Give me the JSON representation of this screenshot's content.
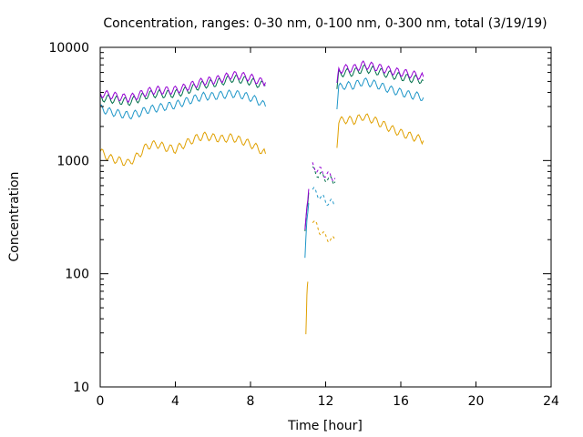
{
  "chart_data": {
    "type": "line",
    "title": "Concentration, ranges: 0-30 nm, 0-100 nm, 0-300 nm, total (3/19/19)",
    "xlabel": "Time [hour]",
    "ylabel": "Concentration",
    "xlim": [
      0,
      24
    ],
    "ylim": [
      10,
      10000
    ],
    "yscale": "log",
    "grid": false,
    "legend": "none",
    "xticks": [
      "0",
      "4",
      "8",
      "12",
      "16",
      "20",
      "24"
    ],
    "yticks": [
      "10",
      "100",
      "1000",
      "10000"
    ],
    "series": [
      {
        "color": "#e0a000",
        "segments": [
          [
            [
              0,
              1200
            ],
            [
              0.5,
              1050
            ],
            [
              1,
              1000
            ],
            [
              1.5,
              950
            ],
            [
              2,
              1100
            ],
            [
              2.5,
              1350
            ],
            [
              3,
              1400
            ],
            [
              3.5,
              1300
            ],
            [
              4,
              1250
            ],
            [
              4.5,
              1400
            ],
            [
              5,
              1550
            ],
            [
              5.5,
              1650
            ],
            [
              6,
              1600
            ],
            [
              6.5,
              1550
            ],
            [
              7,
              1600
            ],
            [
              7.5,
              1500
            ],
            [
              8,
              1400
            ],
            [
              8.5,
              1250
            ],
            [
              8.8,
              1150
            ]
          ],
          [
            [
              10.95,
              28
            ],
            [
              11,
              60
            ],
            [
              11.05,
              85
            ]
          ],
          [
            [
              11.3,
              300
            ],
            [
              11.6,
              250
            ],
            [
              12,
              210
            ],
            [
              12.5,
              195
            ]
          ],
          [
            [
              12.6,
              1400
            ],
            [
              12.7,
              2200
            ],
            [
              13,
              2300
            ],
            [
              13.5,
              2250
            ],
            [
              14,
              2450
            ],
            [
              14.5,
              2300
            ],
            [
              15,
              2100
            ],
            [
              15.5,
              1900
            ],
            [
              16,
              1750
            ],
            [
              16.5,
              1650
            ],
            [
              17,
              1550
            ],
            [
              17.2,
              1500
            ]
          ]
        ]
      },
      {
        "color": "#1e96c8",
        "segments": [
          [
            [
              0,
              2900
            ],
            [
              0.5,
              2700
            ],
            [
              1,
              2600
            ],
            [
              1.5,
              2500
            ],
            [
              2,
              2600
            ],
            [
              2.5,
              2800
            ],
            [
              3,
              2900
            ],
            [
              3.5,
              3000
            ],
            [
              4,
              3100
            ],
            [
              4.5,
              3300
            ],
            [
              5,
              3500
            ],
            [
              5.5,
              3700
            ],
            [
              6,
              3700
            ],
            [
              6.5,
              3800
            ],
            [
              7,
              3900
            ],
            [
              7.5,
              3800
            ],
            [
              8,
              3600
            ],
            [
              8.5,
              3300
            ],
            [
              8.8,
              3000
            ]
          ],
          [
            [
              10.9,
              130
            ],
            [
              11,
              280
            ],
            [
              11.1,
              420
            ]
          ],
          [
            [
              11.3,
              550
            ],
            [
              11.6,
              500
            ],
            [
              12,
              440
            ],
            [
              12.5,
              410
            ]
          ],
          [
            [
              12.6,
              3000
            ],
            [
              12.7,
              4400
            ],
            [
              13,
              4600
            ],
            [
              13.5,
              4600
            ],
            [
              14,
              5000
            ],
            [
              14.5,
              4800
            ],
            [
              15,
              4500
            ],
            [
              15.5,
              4200
            ],
            [
              16,
              4000
            ],
            [
              16.5,
              3800
            ],
            [
              17,
              3700
            ],
            [
              17.2,
              3600
            ]
          ]
        ]
      },
      {
        "color": "#00704a",
        "segments": [
          [
            [
              0,
              3600
            ],
            [
              0.5,
              3500
            ],
            [
              1,
              3400
            ],
            [
              1.5,
              3300
            ],
            [
              2,
              3500
            ],
            [
              2.5,
              3800
            ],
            [
              3,
              3900
            ],
            [
              3.5,
              3850
            ],
            [
              4,
              3900
            ],
            [
              4.5,
              4100
            ],
            [
              5,
              4400
            ],
            [
              5.5,
              4700
            ],
            [
              6,
              4800
            ],
            [
              6.5,
              5000
            ],
            [
              7,
              5300
            ],
            [
              7.5,
              5200
            ],
            [
              8,
              5000
            ],
            [
              8.5,
              4700
            ],
            [
              8.8,
              4600
            ]
          ],
          [
            [
              10.9,
              220
            ],
            [
              11,
              380
            ],
            [
              11.1,
              520
            ]
          ],
          [
            [
              11.3,
              820
            ],
            [
              11.6,
              760
            ],
            [
              12,
              700
            ],
            [
              12.5,
              650
            ]
          ],
          [
            [
              12.6,
              4200
            ],
            [
              12.7,
              5800
            ],
            [
              13,
              6000
            ],
            [
              13.5,
              6000
            ],
            [
              14,
              6500
            ],
            [
              14.5,
              6300
            ],
            [
              15,
              6000
            ],
            [
              15.5,
              5700
            ],
            [
              16,
              5500
            ],
            [
              16.5,
              5300
            ],
            [
              17,
              5200
            ],
            [
              17.2,
              5100
            ]
          ]
        ]
      },
      {
        "color": "#9400d3",
        "segments": [
          [
            [
              0,
              3900
            ],
            [
              0.5,
              3800
            ],
            [
              1,
              3650
            ],
            [
              1.5,
              3550
            ],
            [
              2,
              3750
            ],
            [
              2.5,
              4050
            ],
            [
              3,
              4200
            ],
            [
              3.5,
              4150
            ],
            [
              4,
              4200
            ],
            [
              4.5,
              4400
            ],
            [
              5,
              4700
            ],
            [
              5.5,
              5000
            ],
            [
              6,
              5100
            ],
            [
              6.5,
              5300
            ],
            [
              7,
              5700
            ],
            [
              7.5,
              5600
            ],
            [
              8,
              5400
            ],
            [
              8.5,
              5000
            ],
            [
              8.8,
              4900
            ]
          ],
          [
            [
              10.9,
              240
            ],
            [
              11,
              420
            ],
            [
              11.1,
              560
            ]
          ],
          [
            [
              11.3,
              900
            ],
            [
              11.6,
              830
            ],
            [
              12,
              760
            ],
            [
              12.5,
              700
            ]
          ],
          [
            [
              12.6,
              4500
            ],
            [
              12.7,
              6300
            ],
            [
              13,
              6500
            ],
            [
              13.5,
              6500
            ],
            [
              14,
              7000
            ],
            [
              14.5,
              6800
            ],
            [
              15,
              6500
            ],
            [
              15.5,
              6200
            ],
            [
              16,
              6000
            ],
            [
              16.5,
              5800
            ],
            [
              17,
              5600
            ],
            [
              17.2,
              5500
            ]
          ]
        ]
      }
    ]
  }
}
